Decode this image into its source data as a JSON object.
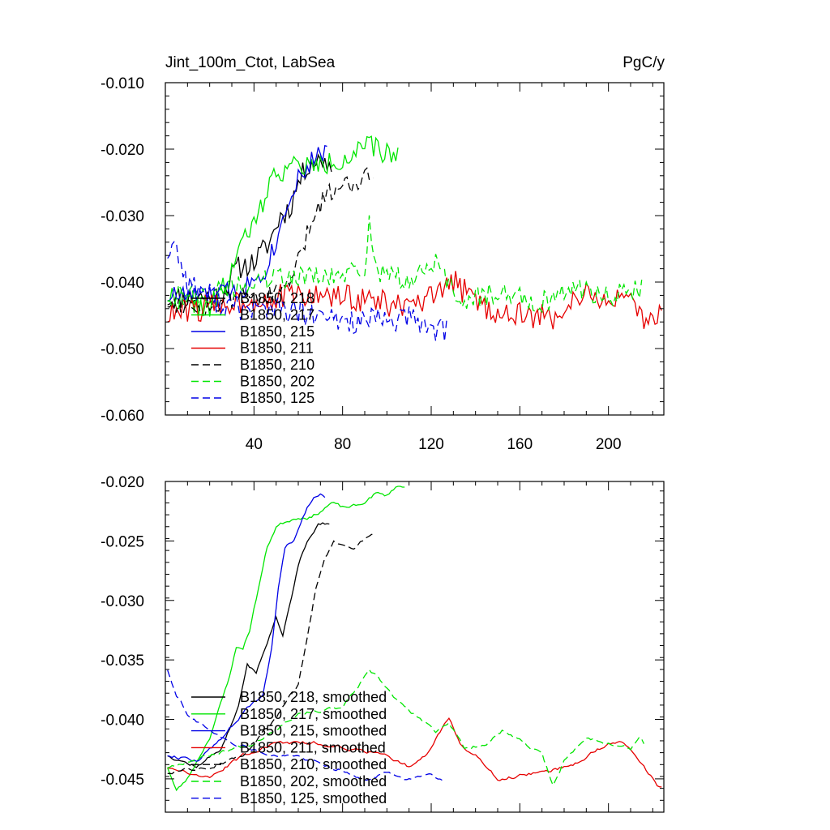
{
  "chart_data": [
    {
      "type": "line",
      "title": "Jint_100m_Ctot, LabSea",
      "units": "PgC/y",
      "xlim": [
        0,
        225
      ],
      "ylim": [
        -0.06,
        -0.01
      ],
      "xticks": [
        40,
        80,
        120,
        160,
        200
      ],
      "xtick_labels": [
        "40",
        "80",
        "120",
        "160",
        "200"
      ],
      "yticks": [
        -0.01,
        -0.02,
        -0.03,
        -0.04,
        -0.05,
        -0.06
      ],
      "ytick_labels": [
        "-0.010",
        "-0.020",
        "-0.030",
        "-0.040",
        "-0.050",
        "-0.060"
      ],
      "legend_position": "lower-left",
      "series": [
        {
          "name": "B1850, 218",
          "color": "#000000",
          "dash": "solid",
          "seed": 11,
          "keys": [
            [
              1,
              -0.0425
            ],
            [
              25,
              -0.042
            ],
            [
              32,
              -0.038
            ],
            [
              40,
              -0.037
            ],
            [
              47,
              -0.034
            ],
            [
              52,
              -0.03
            ],
            [
              56,
              -0.029
            ],
            [
              60,
              -0.025
            ],
            [
              65,
              -0.022
            ],
            [
              72,
              -0.0215
            ],
            [
              75,
              -0.023
            ]
          ],
          "noise": 0.0018
        },
        {
          "name": "B1850, 217",
          "color": "#00e600",
          "dash": "solid",
          "seed": 22,
          "keys": [
            [
              1,
              -0.042
            ],
            [
              20,
              -0.044
            ],
            [
              28,
              -0.04
            ],
            [
              33,
              -0.035
            ],
            [
              37,
              -0.033
            ],
            [
              42,
              -0.03
            ],
            [
              46,
              -0.026
            ],
            [
              50,
              -0.0235
            ],
            [
              58,
              -0.0225
            ],
            [
              70,
              -0.0225
            ],
            [
              80,
              -0.0215
            ],
            [
              92,
              -0.0195
            ],
            [
              98,
              -0.0205
            ],
            [
              105,
              -0.021
            ]
          ],
          "noise": 0.0017
        },
        {
          "name": "B1850, 215",
          "color": "#0000e6",
          "dash": "solid",
          "seed": 33,
          "keys": [
            [
              1,
              -0.042
            ],
            [
              20,
              -0.042
            ],
            [
              35,
              -0.041
            ],
            [
              45,
              -0.038
            ],
            [
              50,
              -0.034
            ],
            [
              55,
              -0.028
            ],
            [
              60,
              -0.024
            ],
            [
              65,
              -0.0225
            ],
            [
              70,
              -0.02
            ],
            [
              73,
              -0.021
            ]
          ],
          "noise": 0.0016
        },
        {
          "name": "B1850, 211",
          "color": "#e60000",
          "dash": "solid",
          "seed": 44,
          "keys": [
            [
              1,
              -0.045
            ],
            [
              30,
              -0.043
            ],
            [
              60,
              -0.042
            ],
            [
              90,
              -0.0425
            ],
            [
              110,
              -0.044
            ],
            [
              124,
              -0.042
            ],
            [
              128,
              -0.0395
            ],
            [
              145,
              -0.044
            ],
            [
              160,
              -0.045
            ],
            [
              175,
              -0.0455
            ],
            [
              185,
              -0.042
            ],
            [
              200,
              -0.0425
            ],
            [
              210,
              -0.0435
            ],
            [
              218,
              -0.0465
            ],
            [
              224,
              -0.0435
            ]
          ],
          "noise": 0.002
        },
        {
          "name": "B1850, 210",
          "color": "#000000",
          "dash": "dashed",
          "seed": 55,
          "keys": [
            [
              1,
              -0.043
            ],
            [
              20,
              -0.044
            ],
            [
              35,
              -0.042
            ],
            [
              50,
              -0.042
            ],
            [
              58,
              -0.039
            ],
            [
              63,
              -0.034
            ],
            [
              67,
              -0.03
            ],
            [
              72,
              -0.027
            ],
            [
              78,
              -0.0255
            ],
            [
              85,
              -0.025
            ],
            [
              90,
              -0.024
            ],
            [
              94,
              -0.024
            ]
          ],
          "noise": 0.0015
        },
        {
          "name": "B1850, 202",
          "color": "#00e600",
          "dash": "dashed",
          "seed": 66,
          "keys": [
            [
              1,
              -0.042
            ],
            [
              20,
              -0.042
            ],
            [
              40,
              -0.04
            ],
            [
              60,
              -0.039
            ],
            [
              75,
              -0.0395
            ],
            [
              85,
              -0.0385
            ],
            [
              90,
              -0.038
            ],
            [
              92,
              -0.031
            ],
            [
              96,
              -0.0385
            ],
            [
              110,
              -0.04
            ],
            [
              122,
              -0.037
            ],
            [
              132,
              -0.043
            ],
            [
              150,
              -0.0415
            ],
            [
              170,
              -0.043
            ],
            [
              185,
              -0.041
            ],
            [
              200,
              -0.042
            ],
            [
              215,
              -0.041
            ]
          ],
          "noise": 0.0017
        },
        {
          "name": "B1850, 125",
          "color": "#0000e6",
          "dash": "dashed",
          "seed": 77,
          "keys": [
            [
              1,
              -0.0355
            ],
            [
              4,
              -0.034
            ],
            [
              10,
              -0.04
            ],
            [
              20,
              -0.042
            ],
            [
              30,
              -0.044
            ],
            [
              50,
              -0.044
            ],
            [
              70,
              -0.0455
            ],
            [
              90,
              -0.046
            ],
            [
              110,
              -0.0455
            ],
            [
              118,
              -0.0465
            ],
            [
              127,
              -0.0475
            ]
          ],
          "noise": 0.002
        }
      ]
    },
    {
      "type": "line",
      "title": "",
      "xlim": [
        0,
        225
      ],
      "ylim": [
        -0.0478,
        -0.02
      ],
      "xticks": [
        40,
        80,
        120,
        160,
        200
      ],
      "yticks": [
        -0.02,
        -0.025,
        -0.03,
        -0.035,
        -0.04,
        -0.045
      ],
      "ytick_labels": [
        "-0.020",
        "-0.025",
        "-0.030",
        "-0.035",
        "-0.040",
        "-0.045"
      ],
      "legend_position": "lower-left",
      "series": [
        {
          "name": "B1850, 218, smoothed",
          "color": "#000000",
          "dash": "solid",
          "seed": 12,
          "keys": [
            [
              1,
              -0.043
            ],
            [
              14,
              -0.044
            ],
            [
              25,
              -0.0425
            ],
            [
              33,
              -0.039
            ],
            [
              37,
              -0.0355
            ],
            [
              41,
              -0.036
            ],
            [
              44,
              -0.0345
            ],
            [
              47,
              -0.033
            ],
            [
              50,
              -0.0315
            ],
            [
              53,
              -0.033
            ],
            [
              56,
              -0.0305
            ],
            [
              60,
              -0.027
            ],
            [
              64,
              -0.025
            ],
            [
              69,
              -0.0235
            ],
            [
              74,
              -0.0235
            ]
          ],
          "noise": 0.0003
        },
        {
          "name": "B1850, 217, smoothed",
          "color": "#00e600",
          "dash": "solid",
          "seed": 23,
          "keys": [
            [
              1,
              -0.044
            ],
            [
              5,
              -0.046
            ],
            [
              10,
              -0.045
            ],
            [
              20,
              -0.0415
            ],
            [
              28,
              -0.037
            ],
            [
              32,
              -0.034
            ],
            [
              35,
              -0.034
            ],
            [
              38,
              -0.0325
            ],
            [
              42,
              -0.029
            ],
            [
              46,
              -0.0255
            ],
            [
              50,
              -0.0238
            ],
            [
              55,
              -0.0233
            ],
            [
              60,
              -0.023
            ],
            [
              66,
              -0.023
            ],
            [
              70,
              -0.0225
            ],
            [
              75,
              -0.0218
            ],
            [
              80,
              -0.0222
            ],
            [
              88,
              -0.022
            ],
            [
              95,
              -0.021
            ],
            [
              100,
              -0.0212
            ],
            [
              104,
              -0.0204
            ],
            [
              108,
              -0.0205
            ]
          ],
          "noise": 0.0003
        },
        {
          "name": "B1850, 215, smoothed",
          "color": "#0000e6",
          "dash": "solid",
          "seed": 34,
          "keys": [
            [
              1,
              -0.043
            ],
            [
              15,
              -0.0435
            ],
            [
              28,
              -0.041
            ],
            [
              35,
              -0.0395
            ],
            [
              40,
              -0.0385
            ],
            [
              44,
              -0.038
            ],
            [
              48,
              -0.034
            ],
            [
              51,
              -0.029
            ],
            [
              54,
              -0.0255
            ],
            [
              58,
              -0.025
            ],
            [
              61,
              -0.0235
            ],
            [
              64,
              -0.0222
            ],
            [
              67,
              -0.0215
            ],
            [
              70,
              -0.0212
            ],
            [
              72,
              -0.0214
            ]
          ],
          "noise": 0.0003
        },
        {
          "name": "B1850, 211, smoothed",
          "color": "#e60000",
          "dash": "solid",
          "seed": 45,
          "keys": [
            [
              1,
              -0.044
            ],
            [
              20,
              -0.045
            ],
            [
              35,
              -0.043
            ],
            [
              50,
              -0.042
            ],
            [
              70,
              -0.042
            ],
            [
              85,
              -0.0425
            ],
            [
              100,
              -0.043
            ],
            [
              110,
              -0.044
            ],
            [
              118,
              -0.043
            ],
            [
              124,
              -0.041
            ],
            [
              128,
              -0.04
            ],
            [
              133,
              -0.042
            ],
            [
              140,
              -0.043
            ],
            [
              150,
              -0.045
            ],
            [
              158,
              -0.0448
            ],
            [
              170,
              -0.0445
            ],
            [
              180,
              -0.044
            ],
            [
              188,
              -0.0435
            ],
            [
              195,
              -0.0425
            ],
            [
              205,
              -0.0418
            ],
            [
              212,
              -0.043
            ],
            [
              218,
              -0.0445
            ],
            [
              222,
              -0.0455
            ],
            [
              224,
              -0.0456
            ]
          ],
          "noise": 0.0003
        },
        {
          "name": "B1850, 210, smoothed",
          "color": "#000000",
          "dash": "dashed",
          "seed": 56,
          "keys": [
            [
              1,
              -0.0445
            ],
            [
              20,
              -0.044
            ],
            [
              35,
              -0.043
            ],
            [
              50,
              -0.04
            ],
            [
              56,
              -0.038
            ],
            [
              60,
              -0.037
            ],
            [
              64,
              -0.033
            ],
            [
              68,
              -0.029
            ],
            [
              72,
              -0.0265
            ],
            [
              76,
              -0.025
            ],
            [
              80,
              -0.0252
            ],
            [
              85,
              -0.0258
            ],
            [
              90,
              -0.0248
            ],
            [
              94,
              -0.0243
            ]
          ],
          "noise": 0.0003
        },
        {
          "name": "B1850, 202, smoothed",
          "color": "#00e600",
          "dash": "dashed",
          "seed": 67,
          "keys": [
            [
              1,
              -0.044
            ],
            [
              20,
              -0.043
            ],
            [
              40,
              -0.042
            ],
            [
              60,
              -0.0395
            ],
            [
              80,
              -0.039
            ],
            [
              88,
              -0.037
            ],
            [
              92,
              -0.036
            ],
            [
              96,
              -0.0365
            ],
            [
              105,
              -0.0385
            ],
            [
              115,
              -0.04
            ],
            [
              122,
              -0.041
            ],
            [
              128,
              -0.0402
            ],
            [
              135,
              -0.0425
            ],
            [
              145,
              -0.042
            ],
            [
              152,
              -0.041
            ],
            [
              160,
              -0.0418
            ],
            [
              170,
              -0.043
            ],
            [
              175,
              -0.0455
            ],
            [
              180,
              -0.0435
            ],
            [
              185,
              -0.0425
            ],
            [
              190,
              -0.0415
            ],
            [
              200,
              -0.042
            ],
            [
              210,
              -0.0425
            ],
            [
              214,
              -0.0415
            ],
            [
              216,
              -0.042
            ]
          ],
          "noise": 0.0003
        },
        {
          "name": "B1850, 125, smoothed",
          "color": "#0000e6",
          "dash": "dashed",
          "seed": 78,
          "keys": [
            [
              1,
              -0.0358
            ],
            [
              5,
              -0.038
            ],
            [
              10,
              -0.0395
            ],
            [
              20,
              -0.041
            ],
            [
              30,
              -0.042
            ],
            [
              45,
              -0.0428
            ],
            [
              60,
              -0.0432
            ],
            [
              75,
              -0.044
            ],
            [
              90,
              -0.045
            ],
            [
              100,
              -0.0445
            ],
            [
              110,
              -0.045
            ],
            [
              118,
              -0.0445
            ],
            [
              125,
              -0.0452
            ]
          ],
          "noise": 0.0003
        }
      ]
    }
  ]
}
